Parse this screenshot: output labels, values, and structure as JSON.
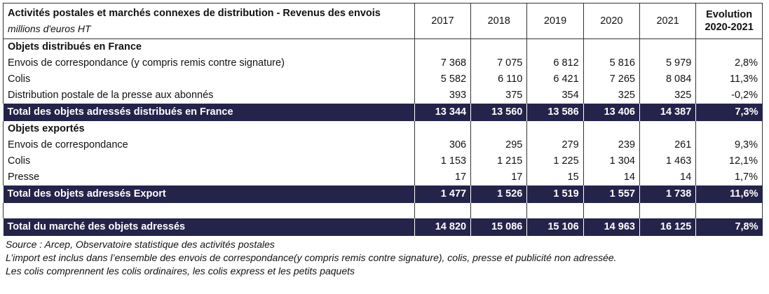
{
  "table": {
    "title": "Activités postales et marchés connexes de distribution - Revenus des envois",
    "unit": "millions d'euros HT",
    "years": [
      "2017",
      "2018",
      "2019",
      "2020",
      "2021"
    ],
    "evolution_label_1": "Evolution",
    "evolution_label_2": "2020-2021",
    "section_france": "Objets distribués en France",
    "france_rows": [
      {
        "label": "Envois de correspondance (y compris remis contre signature)",
        "values": [
          "7 368",
          "7 075",
          "6 812",
          "5 816",
          "5 979"
        ],
        "evolution": "2,8%"
      },
      {
        "label": "Colis",
        "values": [
          "5 582",
          "6 110",
          "6 421",
          "7 265",
          "8 084"
        ],
        "evolution": "11,3%"
      },
      {
        "label": "Distribution postale de la presse aux abonnés",
        "values": [
          "393",
          "375",
          "354",
          "325",
          "325"
        ],
        "evolution": "-0,2%"
      }
    ],
    "total_france": {
      "label": "Total des objets adressés distribués en France",
      "values": [
        "13 344",
        "13 560",
        "13 586",
        "13 406",
        "14 387"
      ],
      "evolution": "7,3%"
    },
    "section_export": "Objets exportés",
    "export_rows": [
      {
        "label": "Envois de correspondance",
        "values": [
          "306",
          "295",
          "279",
          "239",
          "261"
        ],
        "evolution": "9,3%"
      },
      {
        "label": "Colis",
        "values": [
          "1 153",
          "1 215",
          "1 225",
          "1 304",
          "1 463"
        ],
        "evolution": "12,1%"
      },
      {
        "label": "Presse",
        "values": [
          "17",
          "17",
          "15",
          "14",
          "14"
        ],
        "evolution": "1,7%"
      }
    ],
    "total_export": {
      "label": "Total des objets adressés Export",
      "values": [
        "1 477",
        "1 526",
        "1 519",
        "1 557",
        "1 738"
      ],
      "evolution": "11,6%"
    },
    "total_market": {
      "label": "Total du marché des objets adressés",
      "values": [
        "14 820",
        "15 086",
        "15 106",
        "14 963",
        "16 125"
      ],
      "evolution": "7,8%"
    }
  },
  "notes": {
    "source": "Source : Arcep, Observatoire statistique des activités postales",
    "note_1": "L’import est inclus dans l’ensemble des envois de correspondance(y compris remis contre signature), colis, presse et publicité non adressée.",
    "note_2": "Les colis comprennent les colis ordinaires, les colis express et les petits paquets"
  }
}
